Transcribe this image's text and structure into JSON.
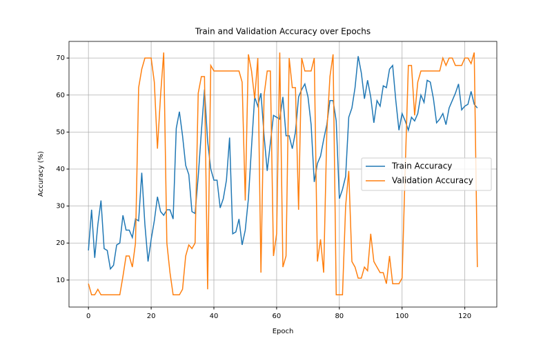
{
  "chart_data": {
    "type": "line",
    "title": "Train and Validation Accuracy over Epochs",
    "xlabel": "Epoch",
    "ylabel": "Accuracy (%)",
    "x": [
      0,
      1,
      2,
      3,
      4,
      5,
      6,
      7,
      8,
      9,
      10,
      11,
      12,
      13,
      14,
      15,
      16,
      17,
      18,
      19,
      20,
      21,
      22,
      23,
      24,
      25,
      26,
      27,
      28,
      29,
      30,
      31,
      32,
      33,
      34,
      35,
      36,
      37,
      38,
      39,
      40,
      41,
      42,
      43,
      44,
      45,
      46,
      47,
      48,
      49,
      50,
      51,
      52,
      53,
      54,
      55,
      56,
      57,
      58,
      59,
      60,
      61,
      62,
      63,
      64,
      65,
      66,
      67,
      68,
      69,
      70,
      71,
      72,
      73,
      74,
      75,
      76,
      77,
      78,
      79,
      80,
      81,
      82,
      83,
      84,
      85,
      86,
      87,
      88,
      89,
      90,
      91,
      92,
      93,
      94,
      95,
      96,
      97,
      98,
      99,
      100,
      101,
      102,
      103,
      104,
      105,
      106,
      107,
      108,
      109,
      110,
      111,
      112,
      113,
      114,
      115,
      116,
      117,
      118,
      119,
      120,
      121,
      122,
      123,
      124
    ],
    "series": [
      {
        "name": "Train Accuracy",
        "color": "#1f77b4",
        "values": [
          18,
          29,
          16,
          25,
          31.5,
          18.5,
          18,
          13,
          14,
          19.5,
          20,
          27.5,
          23.5,
          23.5,
          21.5,
          26.5,
          26,
          39,
          25,
          15,
          21,
          26,
          32.5,
          28.5,
          27.5,
          29,
          29,
          26.5,
          51,
          55.5,
          49,
          41,
          38.5,
          28.5,
          28,
          38,
          50,
          61.5,
          47.5,
          40,
          37,
          37,
          29.5,
          32,
          37,
          48.5,
          22.5,
          23,
          26.5,
          19.5,
          23.5,
          32,
          46,
          59.5,
          57,
          60.5,
          49,
          39.5,
          47,
          54.5,
          54,
          53.5,
          59.5,
          49,
          49,
          45.5,
          50,
          59.5,
          61.5,
          63,
          59.5,
          52,
          36.5,
          41.5,
          43.5,
          48,
          52,
          58.5,
          58.5,
          53,
          32,
          34.5,
          38,
          54,
          56.5,
          62,
          70.5,
          66,
          59,
          64,
          59.5,
          52.5,
          58.5,
          57,
          62.5,
          62,
          67,
          68,
          58.5,
          50.5,
          55,
          53,
          50.5,
          54,
          53,
          55,
          60,
          58,
          64,
          63.5,
          59,
          52.5,
          53.5,
          55,
          52,
          56.5,
          58.5,
          60.5,
          63,
          56,
          57,
          57.5,
          61,
          57.5,
          56.5
        ]
      },
      {
        "name": "Validation Accuracy",
        "color": "#ff7f0e",
        "values": [
          9,
          6,
          6,
          7.5,
          6,
          6,
          6,
          6,
          6,
          6,
          6,
          11,
          16.5,
          16.5,
          13.5,
          20,
          62,
          67,
          70,
          70,
          70,
          63.5,
          45.5,
          60,
          71.5,
          20,
          12,
          6,
          6,
          6,
          7.5,
          16.5,
          19.5,
          18.5,
          20,
          60.5,
          65,
          65,
          7.5,
          68,
          66.5,
          66.5,
          66.5,
          66.5,
          66.5,
          66.5,
          66.5,
          66.5,
          66.5,
          63.5,
          31.5,
          71,
          66.5,
          59,
          70,
          12,
          60,
          66.5,
          66.5,
          16.5,
          22.5,
          71.5,
          13.5,
          16.5,
          70,
          62,
          62,
          29,
          70,
          66.5,
          66.5,
          66.5,
          70,
          15,
          21,
          12,
          50,
          65,
          71,
          6,
          6,
          6,
          30,
          39.5,
          15,
          13.5,
          10.5,
          10.5,
          13.5,
          12.5,
          22.5,
          15,
          13.5,
          12,
          12,
          9,
          16.5,
          9,
          9,
          9,
          10.5,
          40,
          68,
          68,
          54.5,
          63.5,
          66.5,
          66.5,
          66.5,
          66.5,
          66.5,
          66.5,
          66.5,
          70,
          68,
          70,
          70,
          68,
          68,
          68,
          70,
          70,
          68.5,
          71.5,
          13.5
        ]
      }
    ],
    "xlim": [
      -6.2,
      130.2
    ],
    "ylim": [
      2.7,
      74.5
    ],
    "xticks": [
      0,
      20,
      40,
      60,
      80,
      100,
      120
    ],
    "yticks": [
      10,
      20,
      30,
      40,
      50,
      60,
      70
    ],
    "grid": true,
    "legend": "center right"
  }
}
